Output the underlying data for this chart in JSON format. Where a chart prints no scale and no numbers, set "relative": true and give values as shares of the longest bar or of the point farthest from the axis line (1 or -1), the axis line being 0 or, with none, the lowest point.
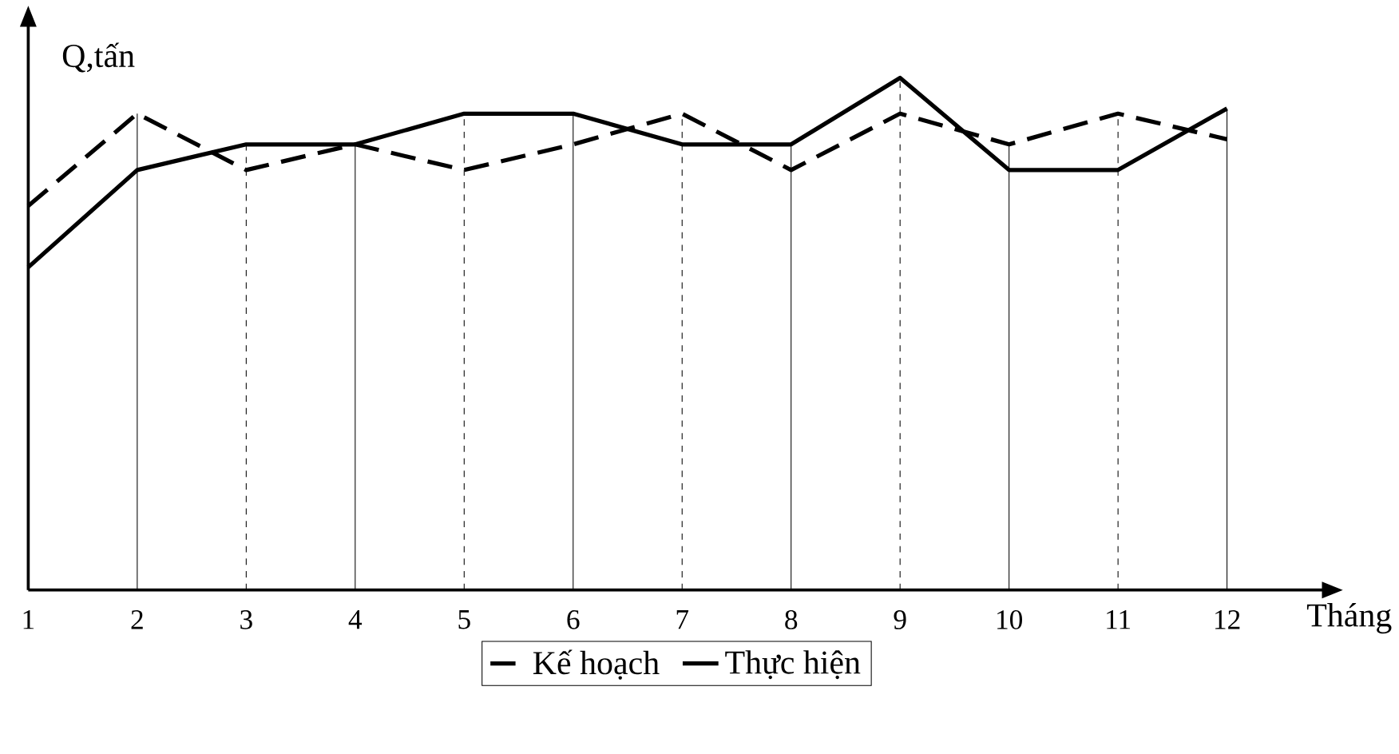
{
  "chart_data": {
    "type": "line",
    "relative": true,
    "xlabel": "Tháng",
    "ylabel": "Q,tấn",
    "categories": [
      "1",
      "2",
      "3",
      "4",
      "5",
      "6",
      "7",
      "8",
      "9",
      "10",
      "11",
      "12"
    ],
    "series": [
      {
        "name": "Kế hoạch",
        "color": "#000000",
        "line_style": "dashed",
        "values": [
          0.75,
          0.93,
          0.82,
          0.87,
          0.82,
          0.87,
          0.93,
          0.82,
          0.93,
          0.87,
          0.93,
          0.88
        ]
      },
      {
        "name": "Thực hiện",
        "color": "#000000",
        "line_style": "solid",
        "values": [
          0.63,
          0.82,
          0.87,
          0.87,
          0.93,
          0.93,
          0.87,
          0.87,
          1.0,
          0.82,
          0.82,
          0.94
        ]
      }
    ],
    "grid": "x",
    "legend": "bottom",
    "marker": "none"
  }
}
